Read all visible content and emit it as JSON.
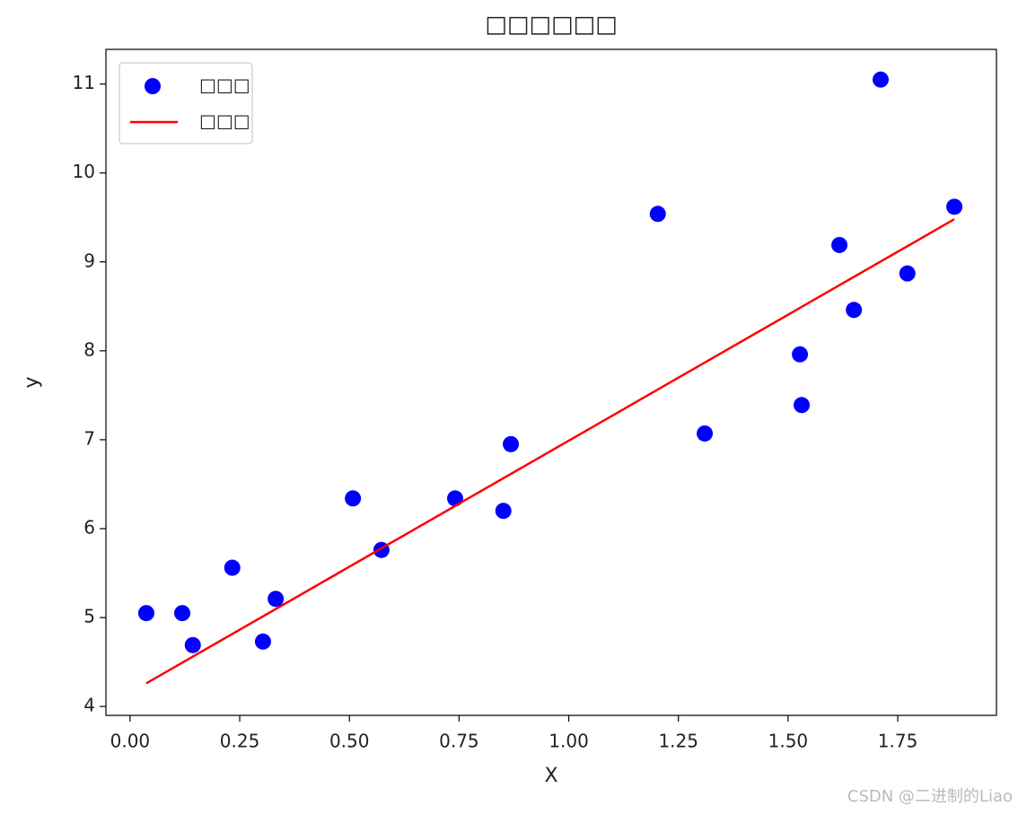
{
  "chart_data": {
    "type": "scatter",
    "title": "□□□□□□",
    "xlabel": "X",
    "ylabel": "y",
    "series": [
      {
        "name": "□□□",
        "type": "scatter",
        "color": "#0000ff",
        "x": [
          0.037,
          0.119,
          0.143,
          0.233,
          0.303,
          0.332,
          0.508,
          0.573,
          0.741,
          0.851,
          0.868,
          1.203,
          1.31,
          1.527,
          1.531,
          1.617,
          1.65,
          1.711,
          1.772,
          1.879
        ],
        "values": [
          5.05,
          5.05,
          4.69,
          5.56,
          4.73,
          5.21,
          6.34,
          5.76,
          6.34,
          6.2,
          6.95,
          9.54,
          7.07,
          7.96,
          7.39,
          9.19,
          8.46,
          11.05,
          8.87,
          9.62
        ]
      },
      {
        "name": "□□□",
        "type": "line",
        "color": "#ff0000",
        "x": [
          0.037,
          1.879
        ],
        "values": [
          4.26,
          9.48
        ]
      }
    ],
    "xlim": [
      -0.055,
      1.975
    ],
    "ylim": [
      3.9,
      11.39
    ],
    "xticks": [
      {
        "value": 0,
        "label": "0.00"
      },
      {
        "value": 0.25,
        "label": "0.25"
      },
      {
        "value": 0.5,
        "label": "0.50"
      },
      {
        "value": 0.75,
        "label": "0.75"
      },
      {
        "value": 1,
        "label": "1.00"
      },
      {
        "value": 1.25,
        "label": "1.25"
      },
      {
        "value": 1.5,
        "label": "1.50"
      },
      {
        "value": 1.75,
        "label": "1.75"
      }
    ],
    "yticks": [
      4,
      5,
      6,
      7,
      8,
      9,
      10,
      11
    ],
    "legend": "upper left",
    "grid": false
  },
  "watermark": "CSDN @二进制的Liao"
}
